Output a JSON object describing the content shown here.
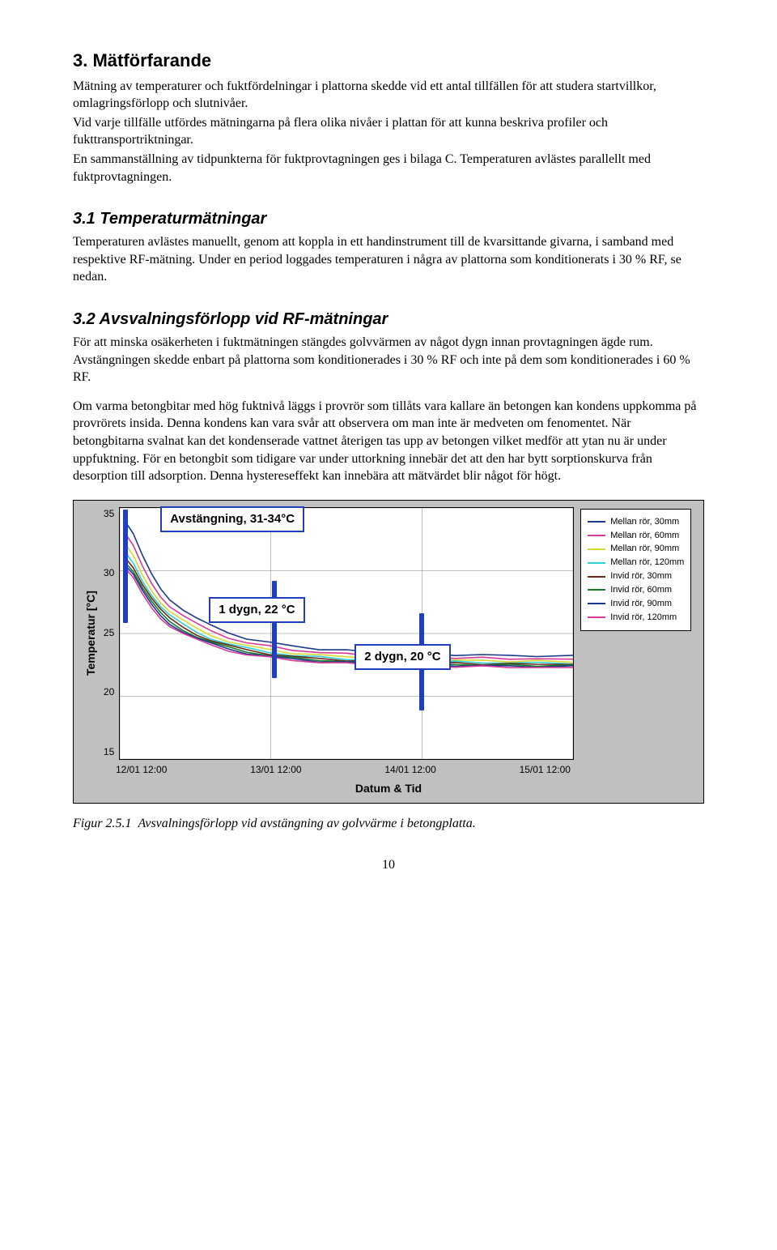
{
  "section3": {
    "heading": "3. Mätförfarande",
    "p1": "Mätning av temperaturer och fuktfördelningar i plattorna skedde vid ett antal tillfällen för att studera startvillkor, omlagringsförlopp och slutnivåer.",
    "p2": "Vid varje tillfälle utfördes mätningarna på flera olika nivåer i plattan för att kunna beskriva profiler och fukttransportriktningar.",
    "p3": "En sammanställning av tidpunkterna för fuktprovtagningen ges i bilaga C. Temperaturen avlästes parallellt med fuktprovtagningen."
  },
  "section31": {
    "heading": "3.1 Temperaturmätningar",
    "p1": "Temperaturen avlästes manuellt, genom att koppla in ett handinstrument till de kvarsittande givarna, i samband med respektive RF-mätning. Under en period loggades temperaturen i några av plattorna som konditionerats i 30 % RF, se nedan."
  },
  "section32": {
    "heading": "3.2 Avsvalningsförlopp vid RF-mätningar",
    "p1": "För att minska osäkerheten i fuktmätningen stängdes golvvärmen av något dygn innan provtagningen ägde rum. Avstängningen skedde enbart på plattorna som konditionerades i 30 % RF och inte på dem som konditionerades i 60 % RF.",
    "p2": "Om varma betongbitar med hög fuktnivå läggs i provrör som tillåts vara kallare än betongen kan kondens uppkomma på provrörets insida. Denna kondens kan vara svår att observera om man inte är medveten om fenomentet. När betongbitarna svalnat kan det kondenserade vattnet återigen tas upp av betongen vilket medför att ytan nu är under uppfuktning. För en betongbit som tidigare var under uttorkning innebär det att den har bytt sorptionskurva från desorption till adsorption. Denna hystereseffekt kan innebära att mätvärdet blir något för högt."
  },
  "chart": {
    "type": "line",
    "ylabel": "Temperatur [°C]",
    "xlabel": "Datum & Tid",
    "ylim": [
      15,
      35
    ],
    "ytick_step": 5,
    "yticks": [
      "35",
      "30",
      "25",
      "20",
      "15"
    ],
    "xticks": [
      "12/01 12:00",
      "13/01 12:00",
      "14/01 12:00",
      "15/01 12:00"
    ],
    "background_color": "#c0c0c0",
    "plot_bg": "#ffffff",
    "grid_color": "#808080",
    "annotation_border": "#1f3fbf",
    "callouts": {
      "off": "Avstängning, 31-34°C",
      "d1": "1 dygn, 22 °C",
      "d2": "2 dygn, 20 °C"
    },
    "series": [
      {
        "label": "Mellan rör, 30mm",
        "color": "#1c3a8c",
        "start": 34.0
      },
      {
        "label": "Mellan rör, 60mm",
        "color": "#d63a9a",
        "start": 33.0
      },
      {
        "label": "Mellan rör, 90mm",
        "color": "#d8d830",
        "start": 32.2
      },
      {
        "label": "Mellan rör, 120mm",
        "color": "#2fd0d6",
        "start": 31.6
      },
      {
        "label": "Invid rör, 30mm",
        "color": "#6a2a1a",
        "start": 31.2
      },
      {
        "label": "Invid rör, 60mm",
        "color": "#1b7a28",
        "start": 30.8
      },
      {
        "label": "Invid rör, 90mm",
        "color": "#1c3a8c",
        "start": 30.5
      },
      {
        "label": "Invid rör, 120mm",
        "color": "#d63a9a",
        "start": 30.2
      }
    ],
    "curve_xy": [
      [
        0.01,
        1.0
      ],
      [
        0.03,
        0.92
      ],
      [
        0.05,
        0.8
      ],
      [
        0.07,
        0.7
      ],
      [
        0.09,
        0.62
      ],
      [
        0.11,
        0.56
      ],
      [
        0.14,
        0.5
      ],
      [
        0.17,
        0.45
      ],
      [
        0.2,
        0.41
      ],
      [
        0.24,
        0.37
      ],
      [
        0.28,
        0.34
      ],
      [
        0.33,
        0.315
      ],
      [
        0.38,
        0.295
      ],
      [
        0.44,
        0.28
      ],
      [
        0.5,
        0.27
      ],
      [
        0.56,
        0.262
      ],
      [
        0.62,
        0.256
      ],
      [
        0.68,
        0.252
      ],
      [
        0.74,
        0.248
      ],
      [
        0.8,
        0.245
      ],
      [
        0.86,
        0.243
      ],
      [
        0.92,
        0.241
      ],
      [
        1.0,
        0.24
      ]
    ]
  },
  "figure": {
    "num": "Figur 2.5.1",
    "text": "Avsvalningsförlopp vid avstängning av golvvärme i betongplatta."
  },
  "page_number": "10"
}
